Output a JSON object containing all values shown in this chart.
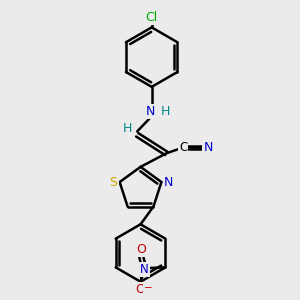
{
  "bg_color": "#ebebeb",
  "bond_color": "#000000",
  "bond_lw": 1.8,
  "dbo": 0.06,
  "atom_colors": {
    "Cl": "#00aa00",
    "N": "#0000cc",
    "S": "#ccaa00",
    "O": "#cc0000",
    "C": "#000000",
    "H": "#008888"
  },
  "fontsize": 8.5
}
